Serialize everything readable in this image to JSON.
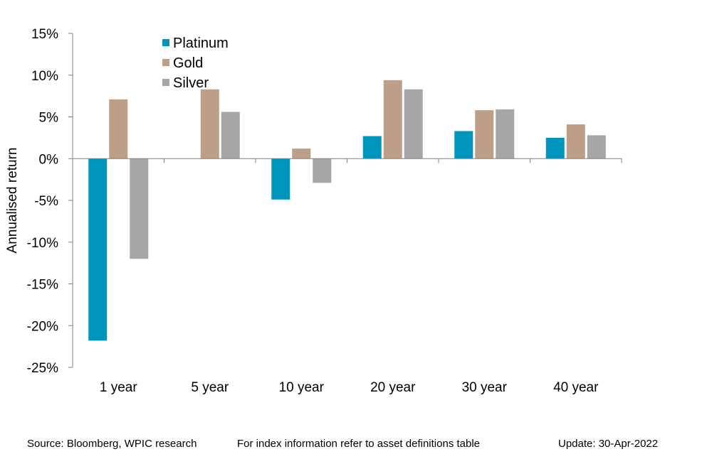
{
  "chart_data": {
    "type": "bar",
    "categories": [
      "1 year",
      "5 year",
      "10 year",
      "20 year",
      "30 year",
      "40 year"
    ],
    "series": [
      {
        "name": "Platinum",
        "color": "#0095BE",
        "values": [
          -21.8,
          0,
          -4.9,
          2.7,
          3.3,
          2.5
        ]
      },
      {
        "name": "Gold",
        "color": "#BD9E88",
        "values": [
          7.1,
          8.3,
          1.2,
          9.4,
          5.8,
          4.1
        ]
      },
      {
        "name": "Silver",
        "color": "#A6A6A6",
        "values": [
          -12.0,
          5.6,
          -2.9,
          8.3,
          5.9,
          2.8
        ]
      }
    ],
    "ylabel": "Annualised return",
    "xlabel": "",
    "ylim": [
      -25,
      15
    ],
    "yticks": [
      15,
      10,
      5,
      0,
      -5,
      -10,
      -15,
      -20,
      -25
    ],
    "ytick_format": "%",
    "legend_position": "top-left",
    "grid": false
  },
  "footer": {
    "source": "Source: Bloomberg, WPIC research",
    "note": "For index information refer to asset definitions table",
    "update": "Update: 30-Apr-2022"
  }
}
